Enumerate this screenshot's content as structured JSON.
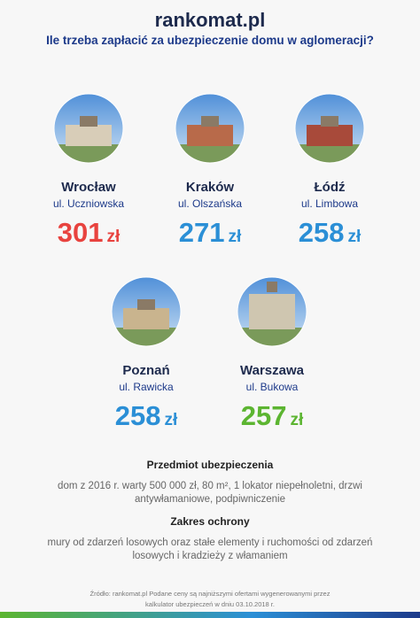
{
  "header": {
    "logo": "rankomat.pl",
    "title": "Ile trzeba zapłacić za ubezpieczenie domu w aglomeracji?"
  },
  "currency": "zł",
  "cities": [
    {
      "name": "Wrocław",
      "street": "ul. Uczniowska",
      "price": 301,
      "color": "#e8433f"
    },
    {
      "name": "Kraków",
      "street": "ul. Olszańska",
      "price": 271,
      "color": "#2b8fd6"
    },
    {
      "name": "Łódź",
      "street": "ul. Limbowa",
      "price": 258,
      "color": "#2b8fd6"
    },
    {
      "name": "Poznań",
      "street": "ul. Rawicka",
      "price": 258,
      "color": "#2b8fd6"
    },
    {
      "name": "Warszawa",
      "street": "ul. Bukowa",
      "price": 257,
      "color": "#5cb531"
    }
  ],
  "sections": [
    {
      "heading": "Przedmiot ubezpieczenia",
      "text": "dom z 2016 r. warty 500 000 zł, 80 m², 1 lokator niepełnoletni, drzwi antywłamaniowe, podpiwniczenie"
    },
    {
      "heading": "Zakres ochrony",
      "text": "mury od zdarzeń losowych oraz stałe elementy i ruchomości od zdarzeń losowych i kradzieży z włamaniem"
    }
  ],
  "footer": "Źródło: rankomat.pl Podane ceny są najniższymi ofertami wygenerowanymi przez kalkulator ubezpieczeń w dniu 03.10.2018 r."
}
